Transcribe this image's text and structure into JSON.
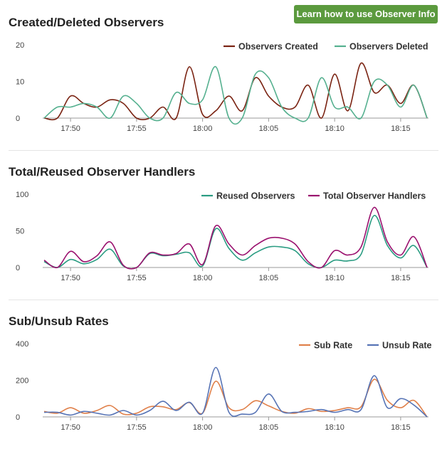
{
  "header": {
    "info_button": "Learn how to use Observer Info"
  },
  "chart_data": [
    {
      "type": "line",
      "title": "Created/Deleted Observers",
      "x": [
        "17:48",
        "17:49",
        "17:50",
        "17:51",
        "17:52",
        "17:53",
        "17:54",
        "17:55",
        "17:56",
        "17:57",
        "17:58",
        "17:59",
        "18:00",
        "18:01",
        "18:02",
        "18:03",
        "18:04",
        "18:05",
        "18:06",
        "18:07",
        "18:08",
        "18:09",
        "18:10",
        "18:11",
        "18:12",
        "18:13",
        "18:14",
        "18:15",
        "18:16",
        "18:17"
      ],
      "x_ticks": [
        "17:50",
        "17:55",
        "18:00",
        "18:05",
        "18:10",
        "18:15"
      ],
      "ylim": [
        0,
        20
      ],
      "y_ticks": [
        0,
        10,
        20
      ],
      "legend": "top-right",
      "series": [
        {
          "name": "Observers Created",
          "color": "#7a2312",
          "values": [
            0,
            0,
            6,
            4,
            3,
            5,
            4,
            0,
            0,
            3,
            0,
            14,
            1,
            2,
            6,
            2,
            11,
            6,
            3,
            3,
            9,
            0,
            12,
            2,
            15,
            7,
            9,
            4,
            9,
            0
          ]
        },
        {
          "name": "Observers Deleted",
          "color": "#55b08f",
          "values": [
            0,
            3,
            3,
            4,
            3,
            0,
            6,
            4,
            0,
            0,
            7,
            4,
            5,
            14,
            0,
            0,
            12,
            11,
            3,
            0,
            0,
            11,
            3,
            3,
            0,
            10,
            9,
            3,
            9,
            0
          ]
        }
      ]
    },
    {
      "type": "line",
      "title": "Total/Reused Observer Handlers",
      "x": [
        "17:48",
        "17:49",
        "17:50",
        "17:51",
        "17:52",
        "17:53",
        "17:54",
        "17:55",
        "17:56",
        "17:57",
        "17:58",
        "17:59",
        "18:00",
        "18:01",
        "18:02",
        "18:03",
        "18:04",
        "18:05",
        "18:06",
        "18:07",
        "18:08",
        "18:09",
        "18:10",
        "18:11",
        "18:12",
        "18:13",
        "18:14",
        "18:15",
        "18:16",
        "18:17"
      ],
      "x_ticks": [
        "17:50",
        "17:55",
        "18:00",
        "18:05",
        "18:10",
        "18:15"
      ],
      "ylim": [
        0,
        100
      ],
      "y_ticks": [
        0,
        50,
        100
      ],
      "legend": "top-right",
      "series": [
        {
          "name": "Reused Observers",
          "color": "#2a9c82",
          "values": [
            8,
            0,
            11,
            5,
            11,
            25,
            2,
            0,
            19,
            16,
            18,
            20,
            2,
            53,
            26,
            10,
            20,
            28,
            28,
            23,
            5,
            0,
            10,
            9,
            18,
            71,
            30,
            13,
            30,
            0
          ]
        },
        {
          "name": "Total Observer Handlers",
          "color": "#9a106e",
          "values": [
            10,
            0,
            22,
            8,
            16,
            35,
            3,
            0,
            20,
            17,
            19,
            32,
            4,
            57,
            32,
            17,
            30,
            40,
            40,
            32,
            8,
            0,
            23,
            17,
            28,
            82,
            35,
            17,
            42,
            0
          ]
        }
      ]
    },
    {
      "type": "line",
      "title": "Sub/Unsub Rates",
      "x": [
        "17:48",
        "17:49",
        "17:50",
        "17:51",
        "17:52",
        "17:53",
        "17:54",
        "17:55",
        "17:56",
        "17:57",
        "17:58",
        "17:59",
        "18:00",
        "18:01",
        "18:02",
        "18:03",
        "18:04",
        "18:05",
        "18:06",
        "18:07",
        "18:08",
        "18:09",
        "18:10",
        "18:11",
        "18:12",
        "18:13",
        "18:14",
        "18:15",
        "18:16",
        "18:17"
      ],
      "x_ticks": [
        "17:50",
        "17:55",
        "18:00",
        "18:05",
        "18:10",
        "18:15"
      ],
      "ylim": [
        0,
        400
      ],
      "y_ticks": [
        0,
        200,
        400
      ],
      "legend": "top-right",
      "series": [
        {
          "name": "Sub Rate",
          "color": "#e0804a",
          "values": [
            30,
            20,
            50,
            20,
            35,
            62,
            15,
            20,
            55,
            55,
            40,
            78,
            20,
            195,
            50,
            40,
            88,
            60,
            30,
            20,
            45,
            30,
            35,
            50,
            55,
            205,
            90,
            50,
            90,
            0
          ]
        },
        {
          "name": "Unsub Rate",
          "color": "#5673b5",
          "values": [
            25,
            25,
            10,
            30,
            20,
            10,
            35,
            10,
            35,
            85,
            35,
            80,
            20,
            270,
            25,
            15,
            25,
            125,
            30,
            25,
            30,
            40,
            25,
            40,
            40,
            225,
            50,
            100,
            65,
            0
          ]
        }
      ]
    }
  ]
}
